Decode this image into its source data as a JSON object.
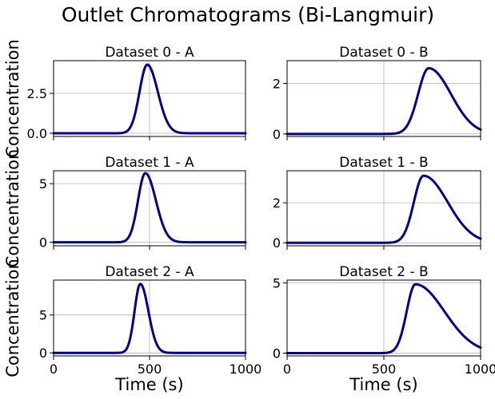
{
  "figure": {
    "suptitle": "Outlet Chromatograms (Bi-Langmuir)",
    "line_color": "#00008b"
  },
  "chart_data": [
    {
      "type": "line",
      "title": "Dataset 0 - A",
      "ylabel": "Concentration",
      "xlabel": "",
      "xlim": [
        0,
        1000
      ],
      "ylim": [
        -0.2,
        4.55
      ],
      "xticks": [
        0,
        500,
        1000
      ],
      "yticks": [
        0.0,
        2.5
      ],
      "ytick_labels": [
        "0.0",
        "2.5"
      ],
      "grid": true,
      "show_xticklabels": false,
      "peak": {
        "x": 488,
        "height": 4.3,
        "sigma_left": 40,
        "sigma_right": 55
      }
    },
    {
      "type": "line",
      "title": "Dataset 0 - B",
      "ylabel": "",
      "xlabel": "",
      "xlim": [
        0,
        1000
      ],
      "ylim": [
        -0.1,
        2.9
      ],
      "xticks": [
        0,
        500,
        1000
      ],
      "yticks": [
        0,
        2
      ],
      "ytick_labels": [
        "0",
        "2"
      ],
      "grid": true,
      "show_xticklabels": false,
      "peak": {
        "x": 732,
        "height": 2.6,
        "sigma_left": 55,
        "sigma_right": 115
      }
    },
    {
      "type": "line",
      "title": "Dataset 1 - A",
      "ylabel": "Concentration",
      "xlabel": "",
      "xlim": [
        0,
        1000
      ],
      "ylim": [
        -0.3,
        6.1
      ],
      "xticks": [
        0,
        500,
        1000
      ],
      "yticks": [
        0,
        5
      ],
      "ytick_labels": [
        "0",
        "5"
      ],
      "grid": true,
      "show_xticklabels": false,
      "peak": {
        "x": 478,
        "height": 5.9,
        "sigma_left": 38,
        "sigma_right": 55
      }
    },
    {
      "type": "line",
      "title": "Dataset 1 - B",
      "ylabel": "",
      "xlabel": "",
      "xlim": [
        0,
        1000
      ],
      "ylim": [
        -0.15,
        3.6
      ],
      "xticks": [
        0,
        500,
        1000
      ],
      "yticks": [
        0,
        2
      ],
      "ytick_labels": [
        "0",
        "2"
      ],
      "grid": true,
      "show_xticklabels": false,
      "peak": {
        "x": 705,
        "height": 3.35,
        "sigma_left": 50,
        "sigma_right": 125
      }
    },
    {
      "type": "line",
      "title": "Dataset 2 - A",
      "ylabel": "Concentration",
      "xlabel": "Time (s)",
      "xlim": [
        0,
        1000
      ],
      "ylim": [
        -0.4,
        9.6
      ],
      "xticks": [
        0,
        500,
        1000
      ],
      "yticks": [
        0,
        5
      ],
      "ytick_labels": [
        "0",
        "5"
      ],
      "grid": true,
      "show_xticklabels": true,
      "xtick_labels": [
        "0",
        "500",
        "1000"
      ],
      "peak": {
        "x": 452,
        "height": 9.1,
        "sigma_left": 30,
        "sigma_right": 42
      }
    },
    {
      "type": "line",
      "title": "Dataset 2 - B",
      "ylabel": "",
      "xlabel": "Time (s)",
      "xlim": [
        0,
        1000
      ],
      "ylim": [
        -0.2,
        5.2
      ],
      "xticks": [
        0,
        500,
        1000
      ],
      "yticks": [
        0,
        5
      ],
      "ytick_labels": [
        "0",
        "5"
      ],
      "grid": true,
      "show_xticklabels": true,
      "xtick_labels": [
        "0",
        "500",
        "1000"
      ],
      "peak": {
        "x": 663,
        "height": 4.9,
        "sigma_left": 45,
        "sigma_right": 150
      }
    }
  ]
}
